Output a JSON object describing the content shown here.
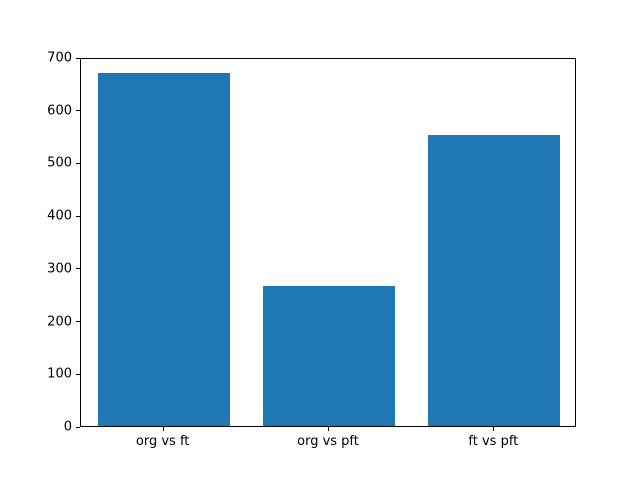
{
  "chart_data": {
    "type": "bar",
    "title": "",
    "xlabel": "",
    "ylabel": "",
    "categories": [
      "org vs ft",
      "org vs pft",
      "ft vs pft"
    ],
    "values": [
      670,
      265,
      553
    ],
    "ylim": [
      0,
      700
    ],
    "yticks": [
      0,
      100,
      200,
      300,
      400,
      500,
      600,
      700
    ],
    "bar_color": "#1f77b4",
    "grid": false,
    "legend_position": "none"
  }
}
